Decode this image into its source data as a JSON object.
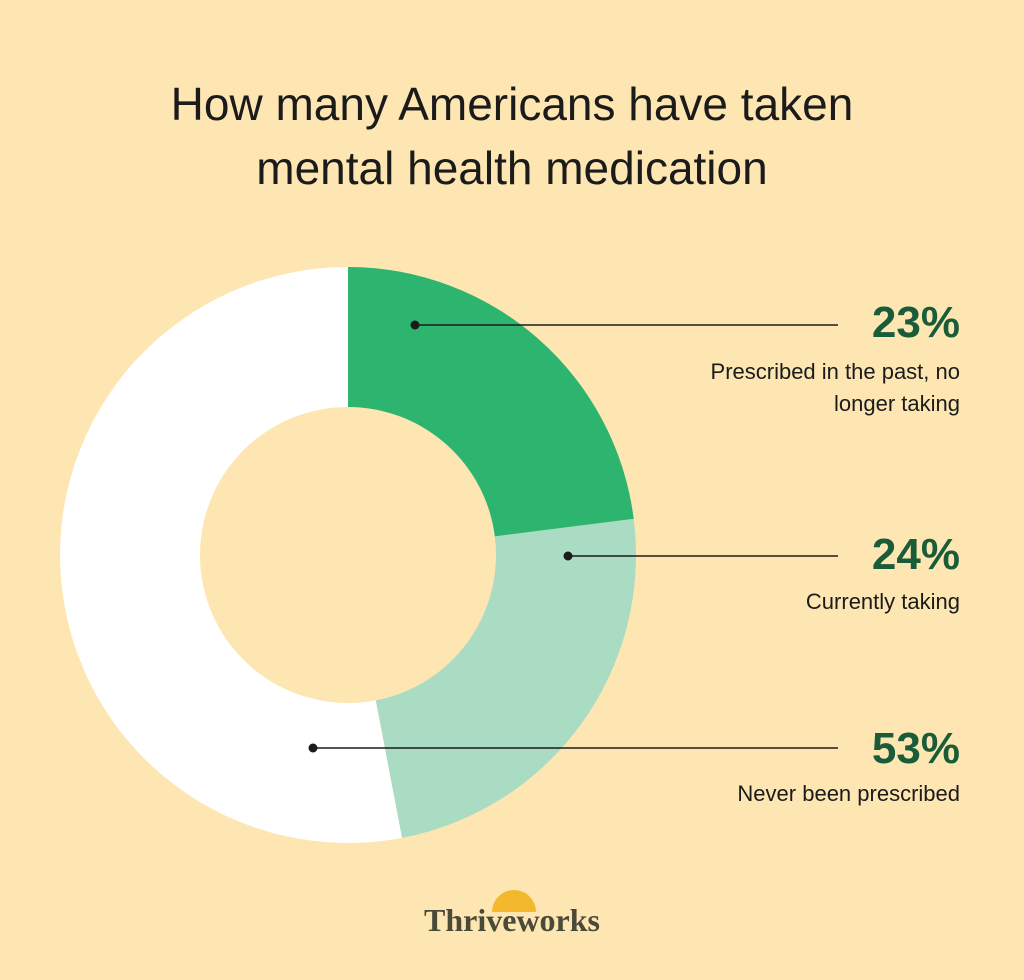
{
  "chart_data": {
    "type": "pie",
    "donut": true,
    "title": "How many Americans have taken mental health medication",
    "categories": [
      "Prescribed in the past, no longer taking",
      "Currently taking",
      "Never been prescribed"
    ],
    "values": [
      23,
      24,
      53
    ],
    "value_labels": [
      "23%",
      "24%",
      "53%"
    ],
    "colors": [
      "#2db56f",
      "#aadcc4",
      "#ffffff"
    ]
  },
  "footer": {
    "brand": "Thriveworks"
  }
}
